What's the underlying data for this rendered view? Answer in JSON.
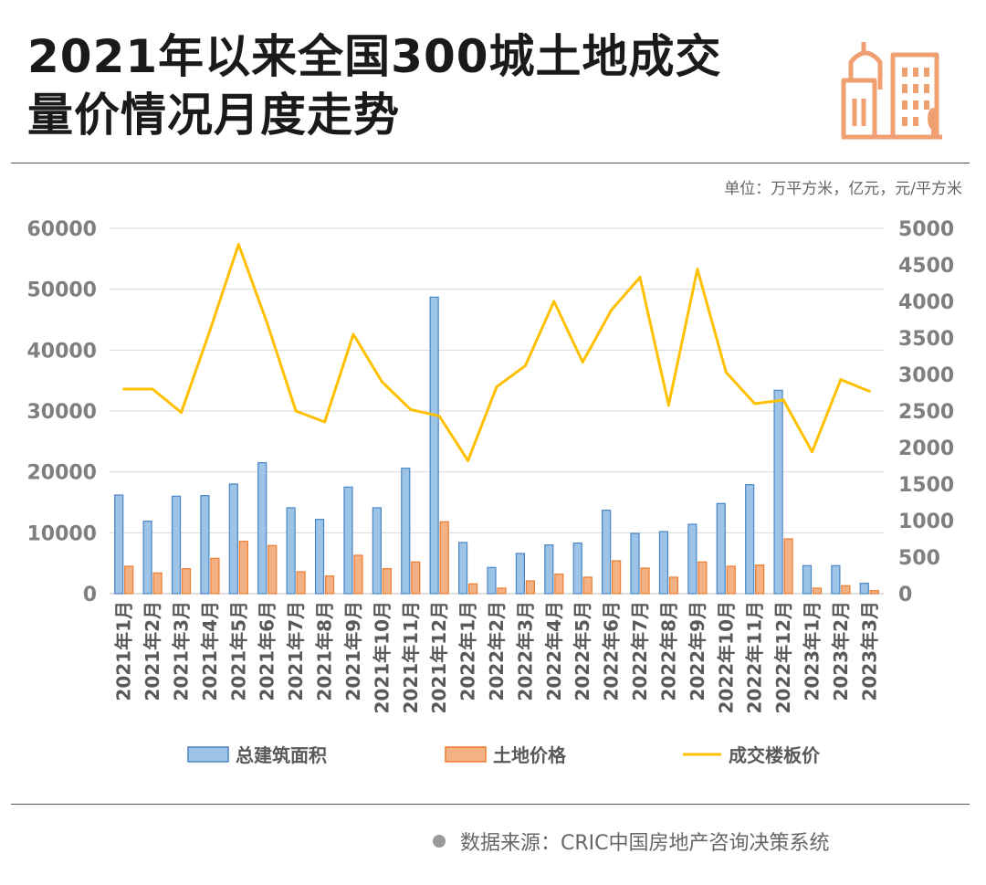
{
  "header": {
    "title_line1": "2021年以来全国300城土地成交",
    "title_line2": "量价情况月度走势",
    "logo_icon": "city-buildings-icon",
    "unit": "单位：万平方米，亿元，元/平方米"
  },
  "source": {
    "text": "数据来源：CRIC中国房地产咨询决策系统"
  },
  "colors": {
    "bar_area": "#9dc3e6",
    "bar_area_border": "#4a86c5",
    "bar_price": "#f4b183",
    "bar_price_border": "#ed7d31",
    "line": "#ffc000",
    "logo": "#f0a070"
  },
  "chart_data": {
    "type": "bar",
    "categories": [
      "2021年1月",
      "2021年2月",
      "2021年3月",
      "2021年4月",
      "2021年5月",
      "2021年6月",
      "2021年7月",
      "2021年8月",
      "2021年9月",
      "2021年10月",
      "2021年11月",
      "2021年12月",
      "2022年1月",
      "2022年2月",
      "2022年3月",
      "2022年4月",
      "2022年5月",
      "2022年6月",
      "2022年7月",
      "2022年8月",
      "2022年9月",
      "2022年10月",
      "2022年11月",
      "2022年12月",
      "2023年1月",
      "2023年2月",
      "2023年3月"
    ],
    "series": [
      {
        "name": "总建筑面积",
        "type": "bar",
        "axis": "left",
        "values": [
          16200,
          11900,
          16000,
          16100,
          18000,
          21500,
          14100,
          12200,
          17500,
          14100,
          20600,
          48700,
          8400,
          4300,
          6600,
          8000,
          8300,
          13700,
          9900,
          10200,
          11400,
          14800,
          17900,
          33400,
          4600,
          4600,
          1700
        ]
      },
      {
        "name": "土地价格",
        "type": "bar",
        "axis": "left",
        "values": [
          4500,
          3400,
          4100,
          5800,
          8600,
          7900,
          3600,
          2900,
          6300,
          4100,
          5200,
          11800,
          1600,
          900,
          2100,
          3200,
          2700,
          5400,
          4200,
          2700,
          5200,
          4500,
          4700,
          9000,
          900,
          1300,
          500
        ]
      },
      {
        "name": "成交楼板价",
        "type": "line",
        "axis": "right",
        "values": [
          2800,
          2800,
          2480,
          3600,
          4780,
          3700,
          2500,
          2350,
          3550,
          2900,
          2520,
          2430,
          1820,
          2830,
          3120,
          4000,
          3170,
          3880,
          4330,
          2580,
          4440,
          3030,
          2600,
          2650,
          1940,
          2930,
          2770
        ]
      }
    ],
    "y_left": {
      "min": 0,
      "max": 60000,
      "ticks": [
        0,
        10000,
        20000,
        30000,
        40000,
        50000,
        60000
      ]
    },
    "y_right": {
      "min": 0,
      "max": 5000,
      "ticks": [
        0,
        500,
        1000,
        1500,
        2000,
        2500,
        3000,
        3500,
        4000,
        4500,
        5000
      ]
    },
    "grid": true,
    "legend_position": "bottom"
  }
}
